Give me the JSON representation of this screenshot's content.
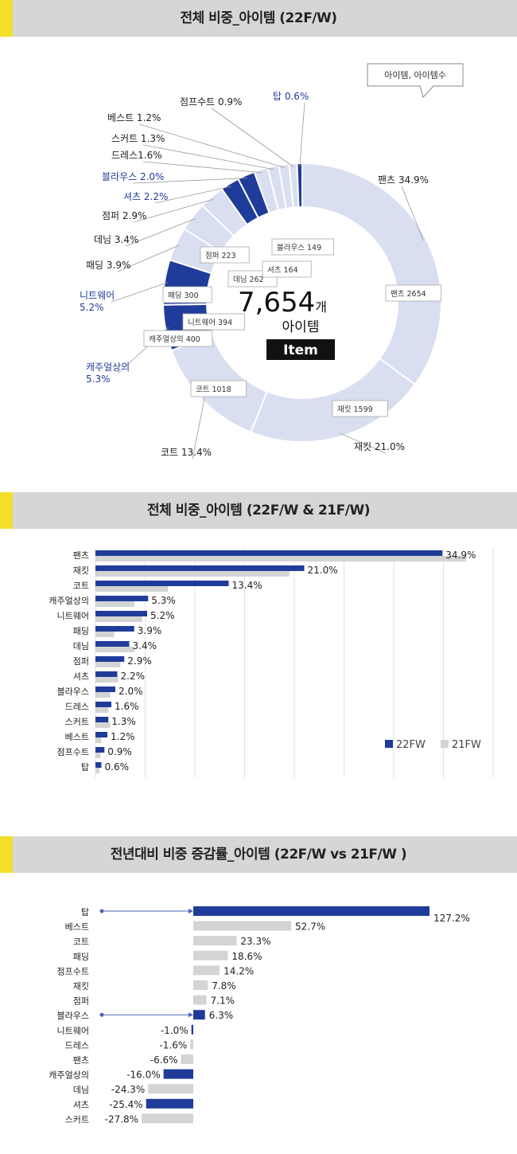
{
  "sections": [
    {
      "title": "전체 비중_아이템 (22F/W)"
    },
    {
      "title": "전체 비중_아이템 (22F/W & 21F/W)"
    },
    {
      "title": "전년대비 비중 증감률_아이템 (22F/W vs 21F/W )"
    }
  ],
  "donut": {
    "callout": "아이템, 아이템수",
    "total_number": "7,654",
    "total_unit": "개",
    "total_sub": "아이템",
    "total_badge": "Item"
  },
  "colors": {
    "primary": "#1f3c9a",
    "light": "#d9def0",
    "gray": "#d4d4d4",
    "accent": "#f2e02a"
  },
  "chart_data": [
    {
      "type": "pie",
      "title": "전체 비중_아이템 (22F/W)",
      "series": [
        {
          "label": "팬츠",
          "pct_label": "팬츠 34.9%",
          "count_label": "팬츠 2654",
          "pct": 34.9,
          "count": 2654,
          "highlight": false
        },
        {
          "label": "재킷",
          "pct_label": "재킷 21.0%",
          "count_label": "재킷 1599",
          "pct": 21.0,
          "count": 1599,
          "highlight": false
        },
        {
          "label": "코트",
          "pct_label": "코트 13.4%",
          "count_label": "코트 1018",
          "pct": 13.4,
          "count": 1018,
          "highlight": false
        },
        {
          "label": "캐주얼상의",
          "pct_label": "캐주얼상의\n5.3%",
          "count_label": "캐주얼상의 400",
          "pct": 5.3,
          "count": 400,
          "highlight": true
        },
        {
          "label": "니트웨어",
          "pct_label": "니트웨어\n5.2%",
          "count_label": "니트웨어 394",
          "pct": 5.2,
          "count": 394,
          "highlight": true
        },
        {
          "label": "패딩",
          "pct_label": "패딩 3.9%",
          "count_label": "패딩 300",
          "pct": 3.9,
          "count": 300,
          "highlight": false
        },
        {
          "label": "데님",
          "pct_label": "데님 3.4%",
          "count_label": "데님 262",
          "pct": 3.4,
          "count": 262,
          "highlight": false
        },
        {
          "label": "점퍼",
          "pct_label": "점퍼 2.9%",
          "count_label": "점퍼 223",
          "pct": 2.9,
          "count": 223,
          "highlight": false
        },
        {
          "label": "셔츠",
          "pct_label": "셔츠 2.2%",
          "count_label": "셔츠 164",
          "pct": 2.2,
          "count": 164,
          "highlight": true
        },
        {
          "label": "블라우스",
          "pct_label": "블라우스 2.0%",
          "count_label": "블라우스 149",
          "pct": 2.0,
          "count": 149,
          "highlight": true
        },
        {
          "label": "드레스",
          "pct_label": "드레스1.6%",
          "count_label": "",
          "pct": 1.6,
          "count": null,
          "highlight": false
        },
        {
          "label": "스커트",
          "pct_label": "스커트 1.3%",
          "count_label": "",
          "pct": 1.3,
          "count": null,
          "highlight": false
        },
        {
          "label": "베스트",
          "pct_label": "베스트 1.2%",
          "count_label": "",
          "pct": 1.2,
          "count": null,
          "highlight": false
        },
        {
          "label": "점프수트",
          "pct_label": "점프수트 0.9%",
          "count_label": "",
          "pct": 0.9,
          "count": null,
          "highlight": false
        },
        {
          "label": "탑",
          "pct_label": "탑 0.6%",
          "count_label": "",
          "pct": 0.6,
          "count": null,
          "highlight": true
        }
      ]
    },
    {
      "type": "bar",
      "orientation": "horizontal",
      "title": "전체 비중_아이템 (22F/W & 21F/W)",
      "categories": [
        "팬츠",
        "재킷",
        "코트",
        "캐주얼상의",
        "니트웨어",
        "패딩",
        "데님",
        "점퍼",
        "셔츠",
        "블라우스",
        "드레스",
        "스커트",
        "베스트",
        "점프수트",
        "탑"
      ],
      "series": [
        {
          "name": "22FW",
          "values": [
            34.9,
            21.0,
            13.4,
            5.3,
            5.2,
            3.9,
            3.4,
            2.9,
            2.2,
            2.0,
            1.6,
            1.3,
            1.2,
            0.9,
            0.6
          ],
          "labels": [
            "34.9%",
            "21.0%",
            "13.4%",
            "5.3%",
            "5.2%",
            "3.9%",
            "3.4%",
            "2.9%",
            "2.2%",
            "2.0%",
            "1.6%",
            "1.3%",
            "1.2%",
            "0.9%",
            "0.6%"
          ]
        },
        {
          "name": "21FW",
          "values": [
            37.3,
            19.5,
            7.3,
            3.9,
            4.7,
            1.9,
            3.9,
            2.5,
            2.3,
            1.5,
            1.3,
            1.5,
            0.6,
            0.5,
            0.4
          ]
        }
      ],
      "xlim": [
        0,
        40
      ],
      "grid": true,
      "legend": "bottom-right"
    },
    {
      "type": "bar",
      "orientation": "horizontal",
      "title": "전년대비 비중 증감률_아이템 (22F/W vs 21F/W )",
      "categories": [
        "탑",
        "베스트",
        "코트",
        "패딩",
        "점프수트",
        "재킷",
        "점퍼",
        "블라우스",
        "니트웨어",
        "드레스",
        "팬츠",
        "캐주얼상의",
        "데님",
        "셔츠",
        "스커트"
      ],
      "values": [
        127.2,
        52.7,
        23.3,
        18.6,
        14.2,
        7.8,
        7.1,
        6.3,
        -1.0,
        -1.6,
        -6.6,
        -16.0,
        -24.3,
        -25.4,
        -27.8
      ],
      "labels": [
        "127.2%",
        "52.7%",
        "23.3%",
        "18.6%",
        "14.2%",
        "7.8%",
        "7.1%",
        "6.3%",
        "-1.0%",
        "-1.6%",
        "-6.6%",
        "-16.0%",
        "-24.3%",
        "-25.4%",
        "-27.8%"
      ],
      "highlight": [
        true,
        false,
        false,
        false,
        false,
        false,
        false,
        true,
        true,
        false,
        false,
        true,
        false,
        true,
        false
      ],
      "xlim": [
        -30,
        130
      ]
    }
  ]
}
